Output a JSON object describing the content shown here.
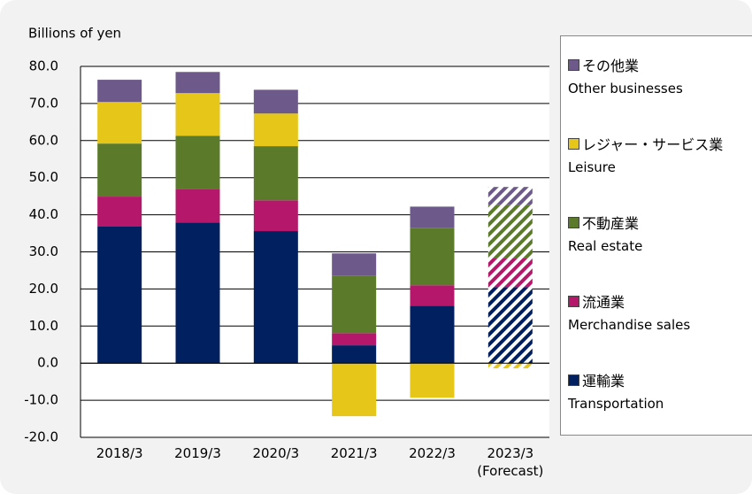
{
  "chart_data": {
    "type": "stacked_bar",
    "y_label": "Billions of yen",
    "categories": [
      "2018/3",
      "2019/3",
      "2020/3",
      "2021/3",
      "2022/3",
      "2023/3\n(Forecast)"
    ],
    "hatch": [
      false,
      false,
      false,
      false,
      false,
      true
    ],
    "series": [
      {
        "name": "運輸業",
        "name_en": "Transportation",
        "color": "#002060",
        "values": [
          36.8,
          37.9,
          35.6,
          4.8,
          15.5,
          20.5
        ]
      },
      {
        "name": "流通業",
        "name_en": "Merchandise sales",
        "color": "#b5186b",
        "values": [
          8.1,
          9.1,
          8.3,
          3.3,
          5.5,
          7.9
        ]
      },
      {
        "name": "不動産業",
        "name_en": "Real estate",
        "color": "#5b7b2b",
        "values": [
          14.3,
          14.3,
          14.6,
          15.5,
          15.5,
          14.3
        ]
      },
      {
        "name": "レジャー・サービス業",
        "name_en": "Leisure",
        "color": "#e6c619",
        "values": [
          11.2,
          11.5,
          8.8,
          -14.3,
          -9.3,
          -1.4
        ]
      },
      {
        "name": "その他業",
        "name_en": "Other businesses",
        "color": "#6e5a8a",
        "values": [
          6.0,
          5.7,
          6.4,
          6.0,
          5.7,
          4.8
        ]
      }
    ],
    "ylim": [
      -20,
      80
    ],
    "yticks": [
      {
        "value": -20,
        "label": "-20.0"
      },
      {
        "value": -10,
        "label": "-10.0"
      },
      {
        "value": 0,
        "label": "0.0"
      },
      {
        "value": 10,
        "label": "10.0"
      },
      {
        "value": 20,
        "label": "20.0"
      },
      {
        "value": 30,
        "label": "30.0"
      },
      {
        "value": 40,
        "label": "40.0"
      },
      {
        "value": 50,
        "label": "50.0"
      },
      {
        "value": 60,
        "label": "60.0"
      },
      {
        "value": 70,
        "label": "70.0"
      },
      {
        "value": 80,
        "label": "80.0"
      }
    ],
    "grid": true
  }
}
